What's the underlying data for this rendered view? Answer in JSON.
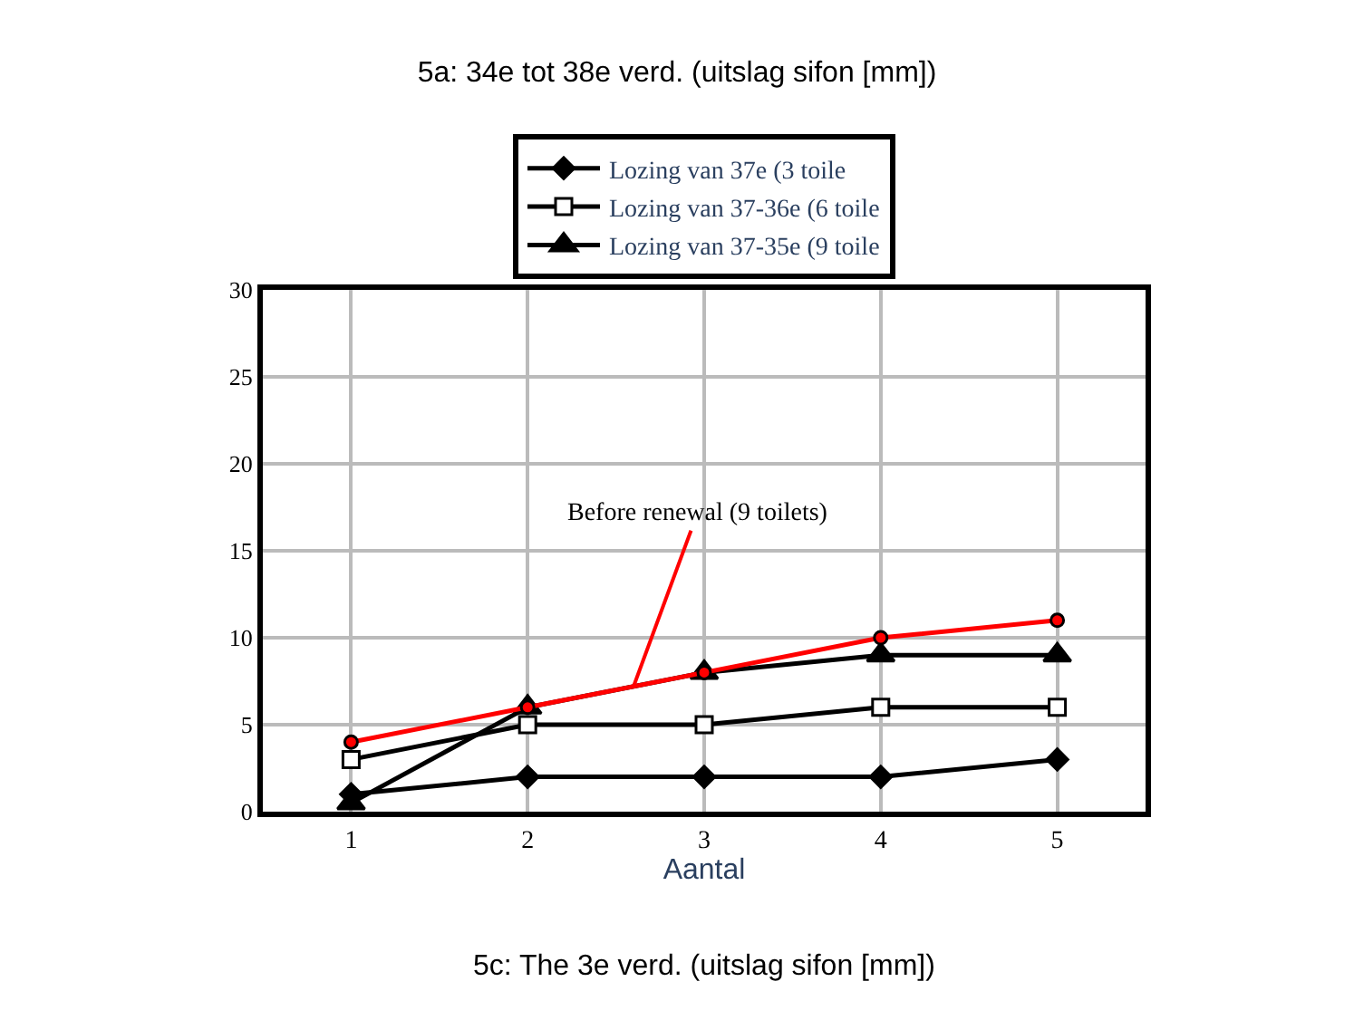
{
  "chart_data": {
    "type": "line",
    "title": "5a: 34e tot 38e verd. (uitslag sifon [mm])",
    "xlabel": "Aantal",
    "x": [
      1,
      2,
      3,
      4,
      5
    ],
    "xlim": [
      0.5,
      5.5
    ],
    "xticks": [
      1,
      2,
      3,
      4,
      5
    ],
    "ylim": [
      0,
      30
    ],
    "yticks": [
      0,
      5,
      10,
      15,
      20,
      25,
      30
    ],
    "grid": true,
    "legend": "top",
    "series": [
      {
        "name": "Lozing van 37e (3 toile",
        "color": "#000000",
        "marker": "diamond",
        "values": [
          1,
          2,
          2,
          2,
          3
        ]
      },
      {
        "name": "Lozing van 37-36e (6 toile",
        "color": "#000000",
        "marker": "square",
        "values": [
          3,
          5,
          5,
          6,
          6
        ]
      },
      {
        "name": "Lozing van 37-35e (9 toile",
        "color": "#000000",
        "marker": "triangle",
        "values": [
          0.5,
          6,
          8,
          9,
          9
        ]
      },
      {
        "color": "#ff0000",
        "marker": "circle",
        "values": [
          4,
          6,
          8,
          10,
          11
        ]
      }
    ],
    "annotations": [
      {
        "text": "Before renewal (9 toilets)",
        "x": 2.6,
        "y": 7.2
      },
      "5c: The 3e verd. (uitslag sifon [mm])"
    ]
  }
}
